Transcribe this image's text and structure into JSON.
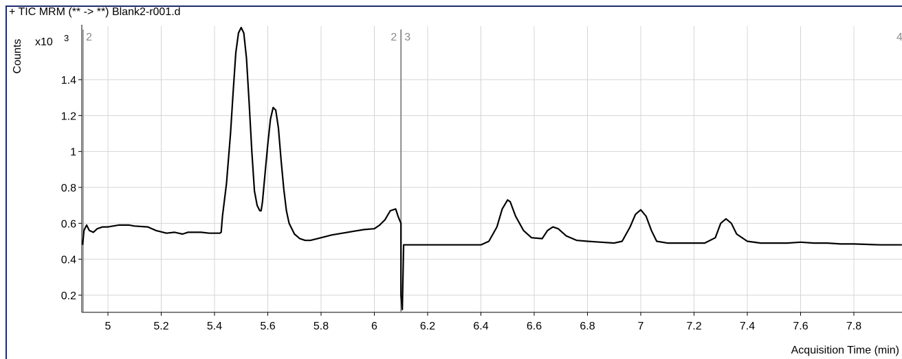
{
  "window": {
    "title": "+ TIC MRM (** -> **) Blank2-r001.d"
  },
  "chart_data": {
    "type": "line",
    "title": "+ TIC MRM (** -> **) Blank2-r001.d",
    "xlabel": "Acquisition Time (min)",
    "ylabel": "Counts",
    "y_multiplier": "x10",
    "y_multiplier_exp": "3",
    "xlim": [
      4.9,
      7.98
    ],
    "ylim": [
      0.1,
      1.6
    ],
    "x_ticks": [
      5,
      5.2,
      5.4,
      5.6,
      5.8,
      6,
      6.2,
      6.4,
      6.6,
      6.8,
      7,
      7.2,
      7.4,
      7.6,
      7.8
    ],
    "y_ticks": [
      0.2,
      0.4,
      0.6,
      0.8,
      1,
      1.2,
      1.4
    ],
    "x_tick_labels": [
      "5",
      "5.2",
      "5.4",
      "5.6",
      "5.8",
      "6",
      "6.2",
      "6.4",
      "6.6",
      "6.8",
      "7",
      "7.2",
      "7.4",
      "7.6",
      "7.8"
    ],
    "y_tick_labels": [
      "0.2",
      "0.4",
      "0.6",
      "0.8",
      "1",
      "1.2",
      "1.4"
    ],
    "grid": true,
    "segment_boundary_x": 6.1,
    "segment_labels": [
      {
        "text": "2",
        "x": 4.92
      },
      {
        "text": "2",
        "x": 6.07
      },
      {
        "text": "3",
        "x": 6.13
      },
      {
        "text": "4",
        "x": 7.98
      }
    ],
    "series": [
      {
        "color": "#000000",
        "points": [
          [
            4.905,
            0.48
          ],
          [
            4.91,
            0.56
          ],
          [
            4.92,
            0.59
          ],
          [
            4.93,
            0.56
          ],
          [
            4.945,
            0.55
          ],
          [
            4.96,
            0.57
          ],
          [
            4.98,
            0.58
          ],
          [
            5.0,
            0.58
          ],
          [
            5.04,
            0.59
          ],
          [
            5.08,
            0.59
          ],
          [
            5.1,
            0.585
          ],
          [
            5.15,
            0.58
          ],
          [
            5.18,
            0.56
          ],
          [
            5.22,
            0.545
          ],
          [
            5.25,
            0.55
          ],
          [
            5.28,
            0.54
          ],
          [
            5.3,
            0.55
          ],
          [
            5.35,
            0.55
          ],
          [
            5.38,
            0.545
          ],
          [
            5.42,
            0.545
          ],
          [
            5.425,
            0.55
          ],
          [
            5.43,
            0.64
          ],
          [
            5.445,
            0.82
          ],
          [
            5.46,
            1.1
          ],
          [
            5.47,
            1.33
          ],
          [
            5.48,
            1.55
          ],
          [
            5.49,
            1.66
          ],
          [
            5.5,
            1.69
          ],
          [
            5.51,
            1.66
          ],
          [
            5.52,
            1.52
          ],
          [
            5.53,
            1.27
          ],
          [
            5.54,
            1.0
          ],
          [
            5.55,
            0.78
          ],
          [
            5.56,
            0.7
          ],
          [
            5.57,
            0.67
          ],
          [
            5.575,
            0.67
          ],
          [
            5.58,
            0.72
          ],
          [
            5.59,
            0.88
          ],
          [
            5.6,
            1.04
          ],
          [
            5.61,
            1.18
          ],
          [
            5.62,
            1.245
          ],
          [
            5.63,
            1.23
          ],
          [
            5.64,
            1.13
          ],
          [
            5.65,
            0.95
          ],
          [
            5.66,
            0.79
          ],
          [
            5.67,
            0.67
          ],
          [
            5.68,
            0.6
          ],
          [
            5.7,
            0.54
          ],
          [
            5.72,
            0.515
          ],
          [
            5.74,
            0.505
          ],
          [
            5.76,
            0.505
          ],
          [
            5.8,
            0.52
          ],
          [
            5.84,
            0.535
          ],
          [
            5.88,
            0.545
          ],
          [
            5.92,
            0.555
          ],
          [
            5.96,
            0.565
          ],
          [
            6.0,
            0.57
          ],
          [
            6.02,
            0.59
          ],
          [
            6.04,
            0.62
          ],
          [
            6.06,
            0.67
          ],
          [
            6.08,
            0.68
          ],
          [
            6.09,
            0.635
          ],
          [
            6.1,
            0.6
          ],
          [
            6.1,
            0.2
          ],
          [
            6.105,
            0.12
          ],
          [
            6.11,
            0.48
          ],
          [
            6.2,
            0.48
          ],
          [
            6.3,
            0.48
          ],
          [
            6.4,
            0.48
          ],
          [
            6.43,
            0.5
          ],
          [
            6.46,
            0.58
          ],
          [
            6.48,
            0.68
          ],
          [
            6.5,
            0.73
          ],
          [
            6.51,
            0.72
          ],
          [
            6.53,
            0.64
          ],
          [
            6.56,
            0.56
          ],
          [
            6.59,
            0.52
          ],
          [
            6.63,
            0.515
          ],
          [
            6.65,
            0.56
          ],
          [
            6.67,
            0.58
          ],
          [
            6.69,
            0.57
          ],
          [
            6.72,
            0.53
          ],
          [
            6.76,
            0.505
          ],
          [
            6.8,
            0.5
          ],
          [
            6.85,
            0.495
          ],
          [
            6.9,
            0.49
          ],
          [
            6.93,
            0.5
          ],
          [
            6.96,
            0.58
          ],
          [
            6.98,
            0.65
          ],
          [
            7.0,
            0.675
          ],
          [
            7.02,
            0.64
          ],
          [
            7.04,
            0.56
          ],
          [
            7.06,
            0.5
          ],
          [
            7.1,
            0.49
          ],
          [
            7.2,
            0.49
          ],
          [
            7.24,
            0.49
          ],
          [
            7.28,
            0.52
          ],
          [
            7.3,
            0.6
          ],
          [
            7.32,
            0.625
          ],
          [
            7.34,
            0.6
          ],
          [
            7.36,
            0.54
          ],
          [
            7.4,
            0.5
          ],
          [
            7.45,
            0.49
          ],
          [
            7.55,
            0.49
          ],
          [
            7.6,
            0.495
          ],
          [
            7.65,
            0.49
          ],
          [
            7.7,
            0.49
          ],
          [
            7.75,
            0.485
          ],
          [
            7.8,
            0.485
          ],
          [
            7.9,
            0.48
          ],
          [
            7.98,
            0.48
          ]
        ]
      }
    ]
  }
}
